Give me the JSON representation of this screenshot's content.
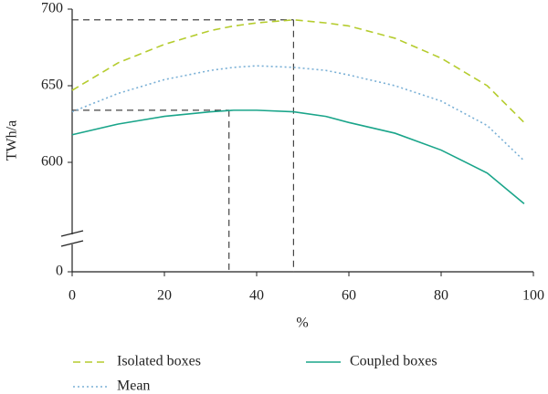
{
  "chart_data": {
    "type": "line",
    "ylabel": "TWh/a",
    "xlabel": "%",
    "x": [
      0,
      10,
      20,
      30,
      35,
      40,
      48,
      55,
      60,
      70,
      80,
      90,
      98
    ],
    "series": [
      {
        "name": "Isolated boxes",
        "color": "#b5cc2e",
        "style": "dashed",
        "values": [
          647,
          665,
          677,
          686,
          689,
          691,
          693,
          691,
          689,
          681,
          668,
          650,
          626
        ]
      },
      {
        "name": "Coupled boxes",
        "color": "#1aa58a",
        "style": "solid",
        "values": [
          618,
          625,
          630,
          633,
          634,
          634,
          633,
          630,
          626,
          619,
          608,
          593,
          573
        ]
      },
      {
        "name": "Mean",
        "color": "#7ab0d6",
        "style": "dotted",
        "values": [
          633,
          645,
          654,
          660,
          662,
          663,
          662,
          660,
          657,
          650,
          640,
          624,
          601
        ]
      }
    ],
    "reference_lines": [
      {
        "x": 48,
        "y": 693
      },
      {
        "x": 34,
        "y": 634
      }
    ],
    "xlim": [
      0,
      100
    ],
    "xticks": [
      0,
      20,
      40,
      60,
      80,
      100
    ],
    "ylim": [
      0,
      700
    ],
    "ybreak": 550,
    "yticks": [
      0,
      600,
      650,
      700
    ]
  }
}
